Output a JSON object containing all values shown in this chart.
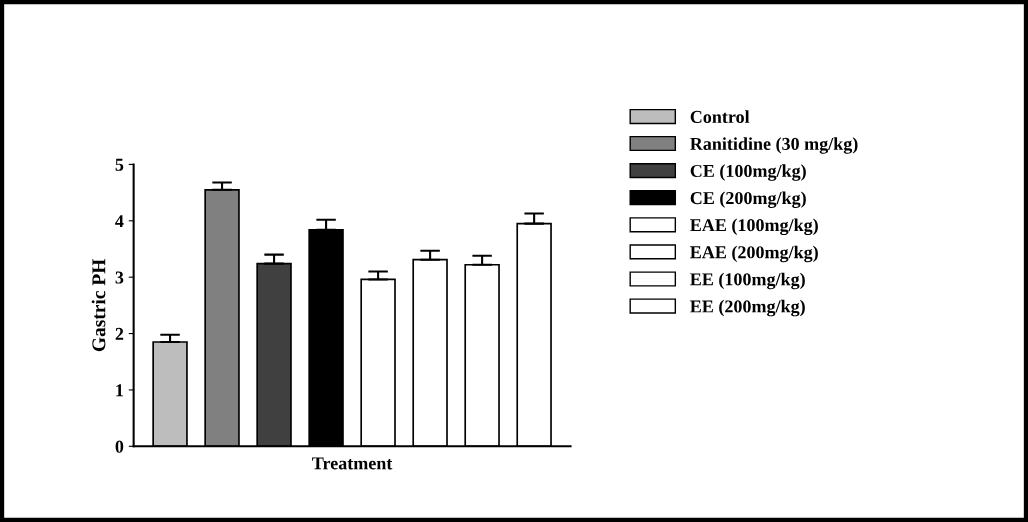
{
  "chart_data": {
    "type": "bar",
    "xlabel": "Treatment",
    "ylabel": "Gastric PH",
    "categories": [
      null,
      null,
      null,
      null,
      null,
      null,
      null,
      null
    ],
    "series": [
      {
        "name": "Control",
        "color": "#bdbdbd",
        "values": [
          1.85,
          null,
          null,
          null,
          null,
          null,
          null,
          null
        ],
        "errors": [
          0.13,
          null,
          null,
          null,
          null,
          null,
          null,
          null
        ]
      },
      {
        "name": "Ranitidine (30 mg/kg)",
        "color": "#808080",
        "values": [
          null,
          4.55,
          null,
          null,
          null,
          null,
          null,
          null
        ],
        "errors": [
          null,
          0.13,
          null,
          null,
          null,
          null,
          null,
          null
        ]
      },
      {
        "name": "CE (100mg/kg)",
        "color": "#404040",
        "values": [
          null,
          null,
          3.24,
          null,
          null,
          null,
          null,
          null
        ],
        "errors": [
          null,
          null,
          0.16,
          null,
          null,
          null,
          null,
          null
        ]
      },
      {
        "name": "CE (200mg/kg)",
        "color": "#000000",
        "values": [
          null,
          null,
          null,
          3.84,
          null,
          null,
          null,
          null
        ],
        "errors": [
          null,
          null,
          null,
          0.18,
          null,
          null,
          null,
          null
        ]
      },
      {
        "name": "EAE (100mg/kg)",
        "color": "#ffffff",
        "values": [
          null,
          null,
          null,
          null,
          2.96,
          null,
          null,
          null
        ],
        "errors": [
          null,
          null,
          null,
          null,
          0.14,
          null,
          null,
          null
        ]
      },
      {
        "name": "EAE (200mg/kg)",
        "color": "#ffffff",
        "values": [
          null,
          null,
          null,
          null,
          null,
          3.31,
          null,
          null
        ],
        "errors": [
          null,
          null,
          null,
          null,
          null,
          0.16,
          null,
          null
        ]
      },
      {
        "name": "EE (100mg/kg)",
        "color": "#ffffff",
        "values": [
          null,
          null,
          null,
          null,
          null,
          null,
          3.22,
          null
        ],
        "errors": [
          null,
          null,
          null,
          null,
          null,
          null,
          0.16,
          null
        ]
      },
      {
        "name": "EE (200mg/kg)",
        "color": "#ffffff",
        "values": [
          null,
          null,
          null,
          null,
          null,
          null,
          null,
          3.95
        ],
        "errors": [
          null,
          null,
          null,
          null,
          null,
          null,
          null,
          0.18
        ]
      }
    ],
    "ylim": [
      0,
      5
    ],
    "yticks": [
      0,
      1,
      2,
      3,
      4,
      5
    ],
    "grid": false,
    "legend": "right"
  }
}
